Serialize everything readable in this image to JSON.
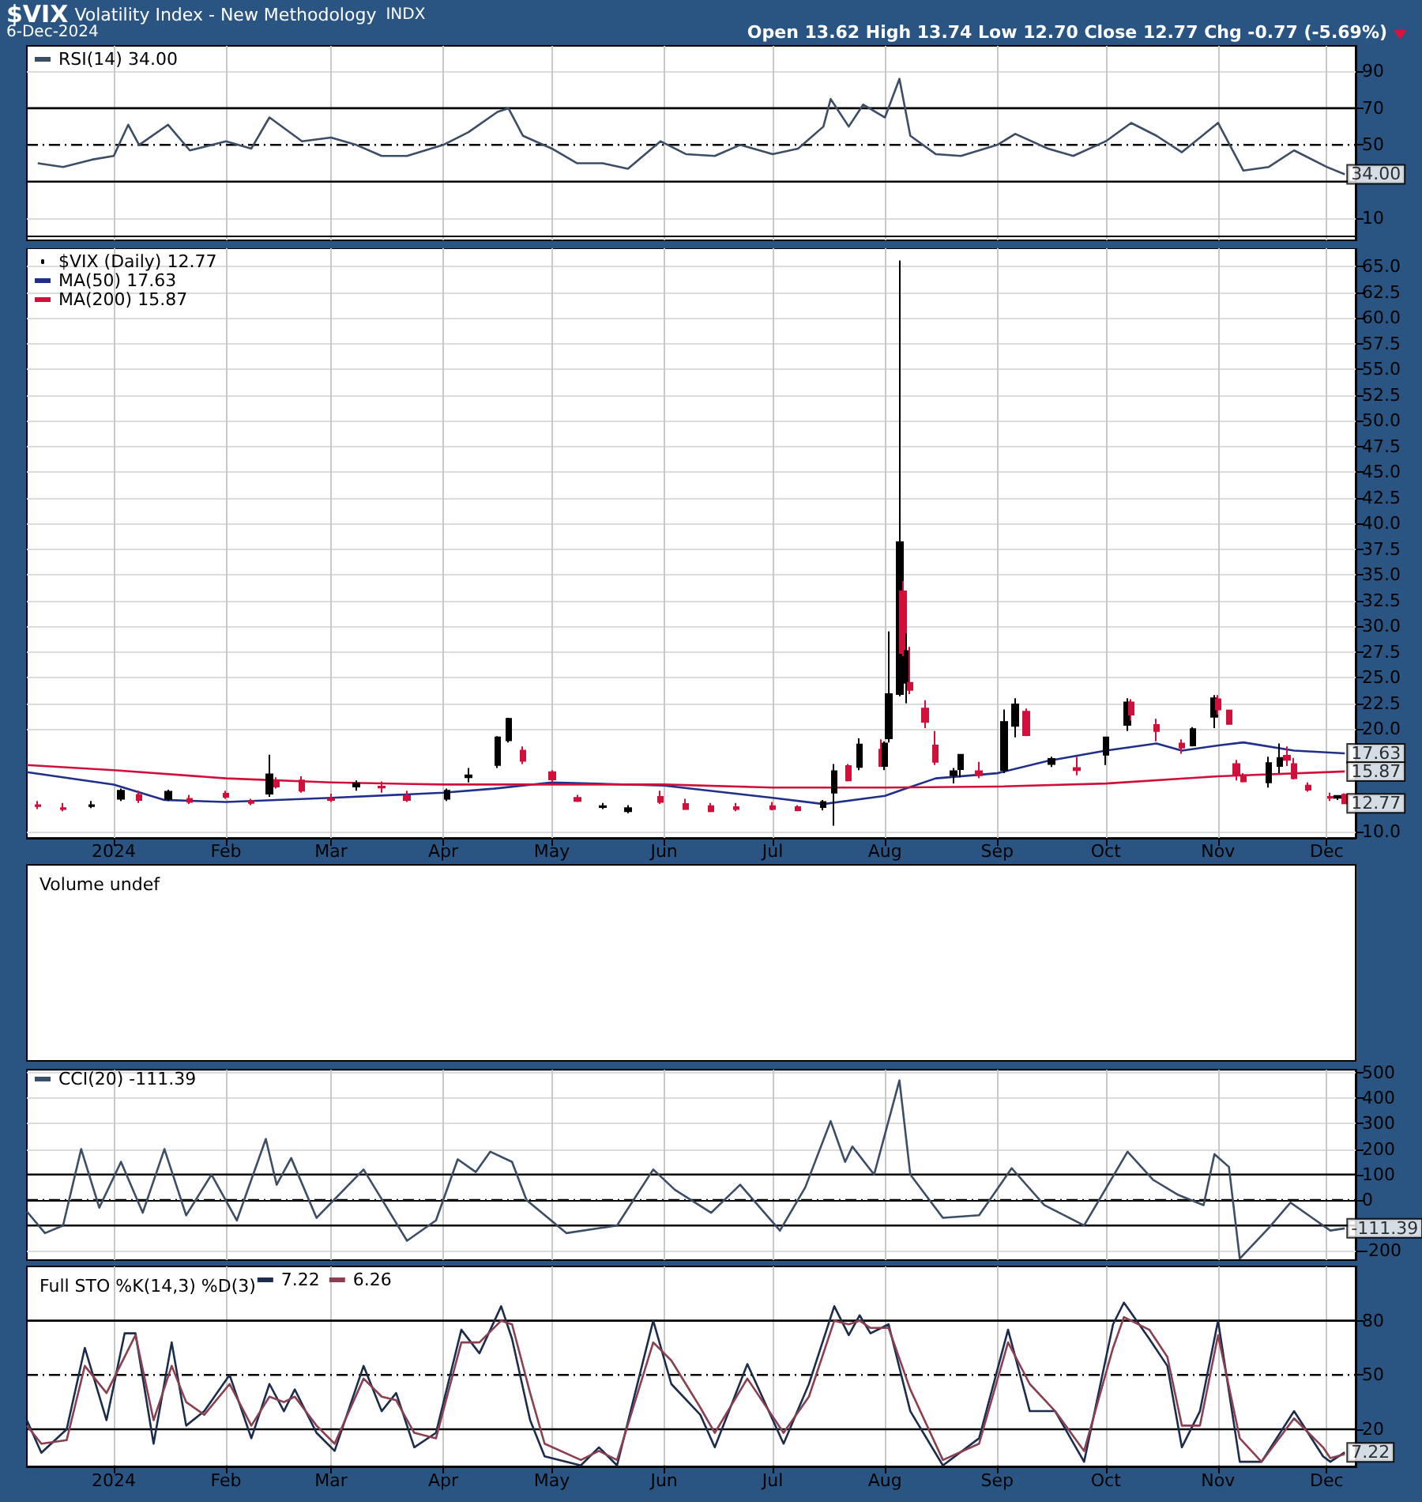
{
  "chart_data": [
    {
      "type": "line",
      "title": "$VIX",
      "subtitle": "Volatility Index - New Methodology",
      "annotations": [
        "INDX",
        "6-Dec-2024",
        "Open 13.62 High 13.74 Low 12.70 Close 12.77 Chg -0.77 (-5.69%)",
        {
          "text": "34.00",
          "x": "2024-12-06",
          "y": 34
        }
      ],
      "xlim": [
        "2023-12-08",
        "2024-12-09"
      ],
      "xticks": [
        {
          "value": "2024-01-01",
          "label": null
        },
        {
          "value": "2024-02-01",
          "label": null
        },
        {
          "value": "2024-03-01",
          "label": null
        },
        {
          "value": "2024-04-01",
          "label": null
        },
        {
          "value": "2024-05-01",
          "label": null
        },
        {
          "value": "2024-06-01",
          "label": null
        },
        {
          "value": "2024-07-01",
          "label": null
        },
        {
          "value": "2024-08-01",
          "label": null
        },
        {
          "value": "2024-09-01",
          "label": null
        },
        {
          "value": "2024-10-01",
          "label": null
        },
        {
          "value": "2024-11-01",
          "label": null
        },
        {
          "value": "2024-12-01",
          "label": null
        }
      ],
      "ylim": [
        -2,
        104
      ],
      "yticks": [
        10,
        50,
        70,
        90
      ],
      "tick_labels": "y",
      "grid": true,
      "legend": "top left",
      "ref_lines": [
        {
          "axis": "y",
          "value": 70,
          "color": "#000000",
          "line_style": "solid"
        },
        {
          "axis": "y",
          "value": 30,
          "color": "#000000",
          "line_style": "solid"
        },
        {
          "axis": "y",
          "value": 50,
          "color": "#000000",
          "line_style": "dashed"
        }
      ],
      "series": [
        {
          "name": "RSI(14) 34.00",
          "color": "#3c4d66",
          "x": [
            "2023-12-11",
            "2023-12-18",
            "2023-12-26",
            "2024-01-01",
            "2024-01-05",
            "2024-01-08",
            "2024-01-16",
            "2024-01-22",
            "2024-02-01",
            "2024-02-08",
            "2024-02-13",
            "2024-02-22",
            "2024-03-01",
            "2024-03-08",
            "2024-03-15",
            "2024-03-22",
            "2024-04-01",
            "2024-04-08",
            "2024-04-16",
            "2024-04-19",
            "2024-04-23",
            "2024-05-01",
            "2024-05-08",
            "2024-05-15",
            "2024-05-22",
            "2024-05-31",
            "2024-06-07",
            "2024-06-15",
            "2024-06-22",
            "2024-07-01",
            "2024-07-08",
            "2024-07-15",
            "2024-07-17",
            "2024-07-22",
            "2024-07-26",
            "2024-08-01",
            "2024-08-05",
            "2024-08-08",
            "2024-08-15",
            "2024-08-22",
            "2024-09-01",
            "2024-09-06",
            "2024-09-15",
            "2024-09-22",
            "2024-10-01",
            "2024-10-08",
            "2024-10-15",
            "2024-10-22",
            "2024-11-01",
            "2024-11-08",
            "2024-11-15",
            "2024-11-22",
            "2024-12-01",
            "2024-12-06"
          ],
          "values": [
            40,
            38,
            42,
            44,
            61,
            50,
            61,
            47,
            52,
            48,
            65,
            52,
            54,
            50,
            44,
            44,
            50,
            57,
            68,
            70,
            55,
            48,
            40,
            40,
            37,
            52,
            45,
            44,
            50,
            45,
            48,
            60,
            75,
            60,
            72,
            65,
            86,
            55,
            45,
            44,
            50,
            56,
            48,
            44,
            52,
            62,
            55,
            46,
            62,
            36,
            38,
            47,
            38,
            34
          ]
        }
      ]
    },
    {
      "type": "candlestick",
      "annotations": [
        {
          "text": "17.63",
          "x": "2024-12-06",
          "y": 17.63
        },
        {
          "text": "15.87",
          "x": "2024-12-06",
          "y": 15.87
        },
        {
          "text": "12.77",
          "x": "2024-12-06",
          "y": 12.77
        }
      ],
      "xlim": [
        "2023-12-08",
        "2024-12-09"
      ],
      "xticks": [
        {
          "value": "2024-01-01",
          "label": "2024"
        },
        {
          "value": "2024-02-01",
          "label": "Feb"
        },
        {
          "value": "2024-03-01",
          "label": "Mar"
        },
        {
          "value": "2024-04-01",
          "label": "Apr"
        },
        {
          "value": "2024-05-01",
          "label": "May"
        },
        {
          "value": "2024-06-01",
          "label": "Jun"
        },
        {
          "value": "2024-07-01",
          "label": "Jul"
        },
        {
          "value": "2024-08-01",
          "label": "Aug"
        },
        {
          "value": "2024-09-01",
          "label": "Sep"
        },
        {
          "value": "2024-10-01",
          "label": "Oct"
        },
        {
          "value": "2024-11-01",
          "label": "Nov"
        },
        {
          "value": "2024-12-01",
          "label": "Dec"
        }
      ],
      "ylim": [
        9.4,
        66.8
      ],
      "yticks": [
        {
          "value": 10,
          "label": "10.0"
        },
        {
          "value": 20,
          "label": "20.0"
        },
        {
          "value": 22.5,
          "label": "22.5"
        },
        {
          "value": 25,
          "label": "25.0"
        },
        {
          "value": 27.5,
          "label": "27.5"
        },
        {
          "value": 30,
          "label": "30.0"
        },
        {
          "value": 32.5,
          "label": "32.5"
        },
        {
          "value": 35,
          "label": "35.0"
        },
        {
          "value": 37.5,
          "label": "37.5"
        },
        {
          "value": 40,
          "label": "40.0"
        },
        {
          "value": 42.5,
          "label": "42.5"
        },
        {
          "value": 45,
          "label": "45.0"
        },
        {
          "value": 47.5,
          "label": "47.5"
        },
        {
          "value": 50,
          "label": "50.0"
        },
        {
          "value": 52.5,
          "label": "52.5"
        },
        {
          "value": 55,
          "label": "55.0"
        },
        {
          "value": 57.5,
          "label": "57.5"
        },
        {
          "value": 60,
          "label": "60.0"
        },
        {
          "value": 62.5,
          "label": "62.5"
        },
        {
          "value": 65,
          "label": "65.0"
        }
      ],
      "grid": true,
      "legend": "top left",
      "series": [
        {
          "name": "$VIX (Daily) 12.77",
          "type": "candlestick",
          "x": [
            "2023-12-11",
            "2023-12-18",
            "2023-12-26",
            "2024-01-03",
            "2024-01-08",
            "2024-01-16",
            "2024-01-22",
            "2024-02-01",
            "2024-02-08",
            "2024-02-13",
            "2024-02-15",
            "2024-02-22",
            "2024-03-01",
            "2024-03-08",
            "2024-03-15",
            "2024-03-22",
            "2024-04-02",
            "2024-04-08",
            "2024-04-16",
            "2024-04-19",
            "2024-04-23",
            "2024-05-01",
            "2024-05-08",
            "2024-05-15",
            "2024-05-22",
            "2024-05-31",
            "2024-06-07",
            "2024-06-14",
            "2024-06-21",
            "2024-07-01",
            "2024-07-08",
            "2024-07-15",
            "2024-07-18",
            "2024-07-22",
            "2024-07-25",
            "2024-07-31",
            "2024-08-01",
            "2024-08-02",
            "2024-08-05",
            "2024-08-06",
            "2024-08-07",
            "2024-08-08",
            "2024-08-12",
            "2024-08-15",
            "2024-08-20",
            "2024-08-22",
            "2024-08-27",
            "2024-09-03",
            "2024-09-06",
            "2024-09-09",
            "2024-09-16",
            "2024-09-23",
            "2024-10-01",
            "2024-10-07",
            "2024-10-08",
            "2024-10-15",
            "2024-10-22",
            "2024-10-25",
            "2024-10-31",
            "2024-11-01",
            "2024-11-04",
            "2024-11-06",
            "2024-11-08",
            "2024-11-15",
            "2024-11-18",
            "2024-11-20",
            "2024-11-22",
            "2024-11-26",
            "2024-12-02",
            "2024-12-04",
            "2024-12-06"
          ],
          "ohlc": [
            [
              12.6,
              13.0,
              12.2,
              12.5
            ],
            [
              12.3,
              12.8,
              12.0,
              12.2
            ],
            [
              12.5,
              13.0,
              12.3,
              12.6
            ],
            [
              13.2,
              14.2,
              13.0,
              14.0
            ],
            [
              13.6,
              14.0,
              12.8,
              13.1
            ],
            [
              13.2,
              14.1,
              13.0,
              13.9
            ],
            [
              13.2,
              13.6,
              12.7,
              12.9
            ],
            [
              13.7,
              14.0,
              13.2,
              13.4
            ],
            [
              13.0,
              13.2,
              12.6,
              12.8
            ],
            [
              13.7,
              17.5,
              13.4,
              15.6
            ],
            [
              15.0,
              15.3,
              14.2,
              14.4
            ],
            [
              15.0,
              15.4,
              13.8,
              14.0
            ],
            [
              13.2,
              13.7,
              12.9,
              13.1
            ],
            [
              14.4,
              15.0,
              14.0,
              14.7
            ],
            [
              14.4,
              14.9,
              13.8,
              14.3
            ],
            [
              13.5,
              14.0,
              12.9,
              13.1
            ],
            [
              13.2,
              14.2,
              13.0,
              14.0
            ],
            [
              15.3,
              16.2,
              14.8,
              15.5
            ],
            [
              16.5,
              19.3,
              16.2,
              19.2
            ],
            [
              18.9,
              21.1,
              18.7,
              21.0
            ],
            [
              17.9,
              18.3,
              16.6,
              16.9
            ],
            [
              15.8,
              16.0,
              14.8,
              15.1
            ],
            [
              13.3,
              13.6,
              12.9,
              13.0
            ],
            [
              12.4,
              12.8,
              12.2,
              12.5
            ],
            [
              12.0,
              12.6,
              11.8,
              12.3
            ],
            [
              13.4,
              14.0,
              12.7,
              12.9
            ],
            [
              12.7,
              13.2,
              12.2,
              12.2
            ],
            [
              12.5,
              12.8,
              11.9,
              12.0
            ],
            [
              12.4,
              12.8,
              12.0,
              12.2
            ],
            [
              12.5,
              12.9,
              12.1,
              12.2
            ],
            [
              12.4,
              12.6,
              12.0,
              12.1
            ],
            [
              12.4,
              13.1,
              12.1,
              12.9
            ],
            [
              13.8,
              16.6,
              10.6,
              15.9
            ],
            [
              16.4,
              16.6,
              14.9,
              15.0
            ],
            [
              16.3,
              19.1,
              16.0,
              18.5
            ],
            [
              18.0,
              19.0,
              16.4,
              16.4
            ],
            [
              16.4,
              18.8,
              16.0,
              18.6
            ],
            [
              19.1,
              29.5,
              18.7,
              23.4
            ],
            [
              23.4,
              65.6,
              23.2,
              38.2
            ],
            [
              33.4,
              34.4,
              27.1,
              27.4
            ],
            [
              24.5,
              29.3,
              22.5,
              27.6
            ],
            [
              24.5,
              28.0,
              23.4,
              23.8
            ],
            [
              22.0,
              22.8,
              20.1,
              20.7
            ],
            [
              18.4,
              19.8,
              16.5,
              16.8
            ],
            [
              15.5,
              16.2,
              14.7,
              15.9
            ],
            [
              16.1,
              17.5,
              15.3,
              17.5
            ],
            [
              15.9,
              16.8,
              15.2,
              15.5
            ],
            [
              16.0,
              21.9,
              15.7,
              20.7
            ],
            [
              20.3,
              23.0,
              19.2,
              22.4
            ],
            [
              21.7,
              22.0,
              19.3,
              19.4
            ],
            [
              16.6,
              17.3,
              16.3,
              17.1
            ],
            [
              16.2,
              17.3,
              15.5,
              16.0
            ],
            [
              17.5,
              19.2,
              16.5,
              19.2
            ],
            [
              20.4,
              23.0,
              19.8,
              22.6
            ],
            [
              22.6,
              22.9,
              20.8,
              21.4
            ],
            [
              20.4,
              21.0,
              18.8,
              19.8
            ],
            [
              18.6,
              19.0,
              17.6,
              18.2
            ],
            [
              18.4,
              20.2,
              18.3,
              20.0
            ],
            [
              21.2,
              23.3,
              20.1,
              23.0
            ],
            [
              22.9,
              23.3,
              21.4,
              21.9
            ],
            [
              21.8,
              21.9,
              20.4,
              20.5
            ],
            [
              16.6,
              17.0,
              15.0,
              15.5
            ],
            [
              15.5,
              15.7,
              14.8,
              14.9
            ],
            [
              14.8,
              17.3,
              14.3,
              16.7
            ],
            [
              16.4,
              18.6,
              15.7,
              17.2
            ],
            [
              17.4,
              18.3,
              16.4,
              17.0
            ],
            [
              16.6,
              17.2,
              15.1,
              15.2
            ],
            [
              14.5,
              14.8,
              13.9,
              14.1
            ],
            [
              13.4,
              13.8,
              13.0,
              13.3
            ],
            [
              13.3,
              13.5,
              13.1,
              13.5
            ],
            [
              13.62,
              13.74,
              12.7,
              12.77
            ]
          ],
          "colors": [
            "#d0103a",
            "#d0103a",
            "#000000",
            "#000000",
            "#d0103a",
            "#000000",
            "#d0103a",
            "#d0103a",
            "#d0103a",
            "#000000",
            "#d0103a",
            "#d0103a",
            "#d0103a",
            "#000000",
            "#d0103a",
            "#d0103a",
            "#000000",
            "#000000",
            "#000000",
            "#000000",
            "#d0103a",
            "#d0103a",
            "#d0103a",
            "#000000",
            "#000000",
            "#d0103a",
            "#d0103a",
            "#d0103a",
            "#d0103a",
            "#d0103a",
            "#d0103a",
            "#000000",
            "#000000",
            "#d0103a",
            "#000000",
            "#d0103a",
            "#000000",
            "#000000",
            "#000000",
            "#d0103a",
            "#000000",
            "#d0103a",
            "#d0103a",
            "#d0103a",
            "#000000",
            "#000000",
            "#d0103a",
            "#000000",
            "#000000",
            "#d0103a",
            "#000000",
            "#d0103a",
            "#000000",
            "#000000",
            "#d0103a",
            "#d0103a",
            "#d0103a",
            "#000000",
            "#000000",
            "#d0103a",
            "#d0103a",
            "#d0103a",
            "#d0103a",
            "#000000",
            "#000000",
            "#d0103a",
            "#d0103a",
            "#d0103a",
            "#d0103a",
            "#000000",
            "#d0103a"
          ]
        },
        {
          "name": "MA(50) 17.63",
          "type": "line",
          "color": "#1f2f8a",
          "x": [
            "2023-12-08",
            "2024-01-01",
            "2024-01-15",
            "2024-02-01",
            "2024-03-01",
            "2024-04-01",
            "2024-04-15",
            "2024-05-01",
            "2024-06-01",
            "2024-07-01",
            "2024-07-15",
            "2024-08-01",
            "2024-08-05",
            "2024-08-15",
            "2024-09-01",
            "2024-09-15",
            "2024-10-01",
            "2024-10-15",
            "2024-10-22",
            "2024-11-01",
            "2024-11-08",
            "2024-11-22",
            "2024-12-06"
          ],
          "values": [
            15.8,
            14.6,
            13.1,
            12.9,
            13.3,
            13.8,
            14.2,
            14.8,
            14.5,
            13.3,
            12.7,
            13.5,
            14.0,
            15.2,
            15.7,
            16.9,
            17.9,
            18.6,
            17.9,
            18.4,
            18.7,
            17.9,
            17.63
          ]
        },
        {
          "name": "MA(200) 15.87",
          "type": "line",
          "color": "#d0103a",
          "x": [
            "2023-12-08",
            "2024-01-01",
            "2024-02-01",
            "2024-03-01",
            "2024-04-01",
            "2024-05-01",
            "2024-06-01",
            "2024-07-01",
            "2024-08-01",
            "2024-09-01",
            "2024-10-01",
            "2024-11-01",
            "2024-12-06"
          ],
          "values": [
            16.5,
            16.0,
            15.2,
            14.8,
            14.6,
            14.6,
            14.6,
            14.3,
            14.3,
            14.4,
            14.7,
            15.4,
            15.87
          ]
        }
      ]
    },
    {
      "type": "other",
      "title": "Volume undef"
    },
    {
      "type": "line",
      "annotations": [
        {
          "text": "-111.39",
          "x": "2024-12-06",
          "y": -111.39
        }
      ],
      "xlim": [
        "2023-12-08",
        "2024-12-09"
      ],
      "xticks": [
        {
          "value": "2024-01-01",
          "label": null
        },
        {
          "value": "2024-02-01",
          "label": null
        },
        {
          "value": "2024-03-01",
          "label": null
        },
        {
          "value": "2024-04-01",
          "label": null
        },
        {
          "value": "2024-05-01",
          "label": null
        },
        {
          "value": "2024-06-01",
          "label": null
        },
        {
          "value": "2024-07-01",
          "label": null
        },
        {
          "value": "2024-08-01",
          "label": null
        },
        {
          "value": "2024-09-01",
          "label": null
        },
        {
          "value": "2024-10-01",
          "label": null
        },
        {
          "value": "2024-11-01",
          "label": null
        },
        {
          "value": "2024-12-01",
          "label": null
        }
      ],
      "ylim": [
        -236,
        512
      ],
      "yticks": [
        -200,
        0,
        100,
        200,
        300,
        400,
        500
      ],
      "tick_labels": "y",
      "grid": true,
      "legend": "top left",
      "ref_lines": [
        {
          "axis": "y",
          "value": 100,
          "color": "#000000",
          "line_style": "solid"
        },
        {
          "axis": "y",
          "value": -100,
          "color": "#000000",
          "line_style": "solid"
        },
        {
          "axis": "y",
          "value": 0,
          "color": "#000000",
          "line_style": "dashed"
        }
      ],
      "series": [
        {
          "name": "CCI(20) -111.39",
          "color": "#3c4d66",
          "x": [
            "2023-12-08",
            "2023-12-13",
            "2023-12-18",
            "2023-12-23",
            "2023-12-28",
            "2024-01-03",
            "2024-01-09",
            "2024-01-15",
            "2024-01-21",
            "2024-01-28",
            "2024-02-04",
            "2024-02-12",
            "2024-02-15",
            "2024-02-19",
            "2024-02-26",
            "2024-03-10",
            "2024-03-16",
            "2024-03-22",
            "2024-03-30",
            "2024-04-05",
            "2024-04-10",
            "2024-04-14",
            "2024-04-20",
            "2024-04-24",
            "2024-05-05",
            "2024-05-19",
            "2024-05-29",
            "2024-06-04",
            "2024-06-14",
            "2024-06-22",
            "2024-07-03",
            "2024-07-10",
            "2024-07-17",
            "2024-07-21",
            "2024-07-23",
            "2024-07-29",
            "2024-08-05",
            "2024-08-08",
            "2024-08-17",
            "2024-08-27",
            "2024-09-05",
            "2024-09-14",
            "2024-09-25",
            "2024-10-07",
            "2024-10-14",
            "2024-10-21",
            "2024-10-28",
            "2024-10-31",
            "2024-11-04",
            "2024-11-07",
            "2024-11-15",
            "2024-11-21",
            "2024-11-27",
            "2024-12-02",
            "2024-12-06"
          ],
          "values": [
            -45,
            -130,
            -100,
            200,
            -30,
            150,
            -50,
            200,
            -60,
            100,
            -80,
            240,
            60,
            165,
            -70,
            120,
            -20,
            -160,
            -80,
            160,
            110,
            190,
            150,
            0,
            -130,
            -100,
            120,
            40,
            -50,
            60,
            -120,
            50,
            310,
            150,
            210,
            100,
            470,
            100,
            -70,
            -60,
            125,
            -20,
            -100,
            190,
            80,
            20,
            -20,
            180,
            130,
            -230,
            -110,
            -10,
            -70,
            -120,
            -111.39
          ]
        }
      ]
    },
    {
      "type": "line",
      "title": "Full STO %K(14,3) %D(3)",
      "annotations": [
        {
          "text": "7.22",
          "x": "2024-12-06",
          "y": 7.22
        }
      ],
      "xlim": [
        "2023-12-08",
        "2024-12-09"
      ],
      "xticks": [
        {
          "value": "2024-01-01",
          "label": "2024"
        },
        {
          "value": "2024-02-01",
          "label": "Feb"
        },
        {
          "value": "2024-03-01",
          "label": "Mar"
        },
        {
          "value": "2024-04-01",
          "label": "Apr"
        },
        {
          "value": "2024-05-01",
          "label": "May"
        },
        {
          "value": "2024-06-01",
          "label": "Jun"
        },
        {
          "value": "2024-07-01",
          "label": "Jul"
        },
        {
          "value": "2024-08-01",
          "label": "Aug"
        },
        {
          "value": "2024-09-01",
          "label": "Sep"
        },
        {
          "value": "2024-10-01",
          "label": "Oct"
        },
        {
          "value": "2024-11-01",
          "label": "Nov"
        },
        {
          "value": "2024-12-01",
          "label": "Dec"
        }
      ],
      "ylim": [
        -1,
        110
      ],
      "yticks": [
        20,
        50,
        80
      ],
      "grid": true,
      "legend": "top left",
      "ref_lines": [
        {
          "axis": "y",
          "value": 80,
          "color": "#000000",
          "line_style": "solid"
        },
        {
          "axis": "y",
          "value": 20,
          "color": "#000000",
          "line_style": "solid"
        },
        {
          "axis": "y",
          "value": 50,
          "color": "#000000",
          "line_style": "dashed"
        }
      ],
      "series": [
        {
          "name": "7.22",
          "color": "#1c2c4c",
          "x": [
            "2023-12-08",
            "2023-12-12",
            "2023-12-19",
            "2023-12-24",
            "2023-12-30",
            "2024-01-04",
            "2024-01-07",
            "2024-01-12",
            "2024-01-17",
            "2024-01-21",
            "2024-01-26",
            "2024-02-02",
            "2024-02-08",
            "2024-02-13",
            "2024-02-17",
            "2024-02-20",
            "2024-02-26",
            "2024-03-02",
            "2024-03-10",
            "2024-03-15",
            "2024-03-19",
            "2024-03-24",
            "2024-03-30",
            "2024-04-06",
            "2024-04-11",
            "2024-04-17",
            "2024-04-20",
            "2024-04-25",
            "2024-04-29",
            "2024-05-09",
            "2024-05-14",
            "2024-05-19",
            "2024-05-29",
            "2024-06-03",
            "2024-06-11",
            "2024-06-15",
            "2024-06-24",
            "2024-07-04",
            "2024-07-11",
            "2024-07-18",
            "2024-07-22",
            "2024-07-25",
            "2024-07-28",
            "2024-08-02",
            "2024-08-08",
            "2024-08-17",
            "2024-08-27",
            "2024-09-04",
            "2024-09-10",
            "2024-09-17",
            "2024-09-25",
            "2024-10-03",
            "2024-10-06",
            "2024-10-13",
            "2024-10-18",
            "2024-10-22",
            "2024-10-27",
            "2024-11-01",
            "2024-11-07",
            "2024-11-13",
            "2024-11-22",
            "2024-11-30",
            "2024-12-02",
            "2024-12-06"
          ],
          "values": [
            25,
            7,
            20,
            65,
            25,
            73,
            73,
            12,
            68,
            22,
            30,
            50,
            15,
            45,
            30,
            42,
            18,
            8,
            55,
            30,
            40,
            10,
            18,
            75,
            62,
            88,
            70,
            25,
            5,
            0,
            10,
            0,
            80,
            45,
            28,
            10,
            56,
            12,
            45,
            88,
            72,
            83,
            73,
            78,
            30,
            0,
            15,
            75,
            30,
            30,
            2,
            78,
            90,
            70,
            55,
            10,
            30,
            80,
            2,
            2,
            30,
            5,
            2,
            7.22
          ]
        },
        {
          "name": "6.26",
          "color": "#8a4050",
          "x": [
            "2023-12-08",
            "2023-12-12",
            "2023-12-19",
            "2023-12-24",
            "2023-12-30",
            "2024-01-04",
            "2024-01-07",
            "2024-01-12",
            "2024-01-17",
            "2024-01-21",
            "2024-01-26",
            "2024-02-02",
            "2024-02-08",
            "2024-02-13",
            "2024-02-17",
            "2024-02-20",
            "2024-02-26",
            "2024-03-02",
            "2024-03-10",
            "2024-03-15",
            "2024-03-19",
            "2024-03-24",
            "2024-03-30",
            "2024-04-06",
            "2024-04-11",
            "2024-04-17",
            "2024-04-20",
            "2024-04-25",
            "2024-04-29",
            "2024-05-09",
            "2024-05-14",
            "2024-05-19",
            "2024-05-29",
            "2024-06-03",
            "2024-06-11",
            "2024-06-15",
            "2024-06-24",
            "2024-07-04",
            "2024-07-11",
            "2024-07-18",
            "2024-07-22",
            "2024-07-25",
            "2024-07-28",
            "2024-08-02",
            "2024-08-08",
            "2024-08-17",
            "2024-08-27",
            "2024-09-04",
            "2024-09-10",
            "2024-09-17",
            "2024-09-25",
            "2024-10-03",
            "2024-10-06",
            "2024-10-13",
            "2024-10-18",
            "2024-10-22",
            "2024-10-27",
            "2024-11-01",
            "2024-11-07",
            "2024-11-13",
            "2024-11-22",
            "2024-11-30",
            "2024-12-02",
            "2024-12-06"
          ],
          "values": [
            22,
            12,
            14,
            55,
            40,
            60,
            72,
            25,
            55,
            35,
            28,
            45,
            22,
            38,
            35,
            38,
            22,
            12,
            48,
            38,
            36,
            18,
            15,
            68,
            68,
            80,
            78,
            40,
            12,
            3,
            8,
            3,
            68,
            58,
            32,
            18,
            48,
            18,
            38,
            80,
            78,
            80,
            76,
            76,
            42,
            3,
            12,
            68,
            45,
            30,
            8,
            65,
            82,
            75,
            60,
            22,
            22,
            72,
            15,
            2,
            26,
            10,
            4,
            6.26
          ]
        }
      ]
    }
  ]
}
